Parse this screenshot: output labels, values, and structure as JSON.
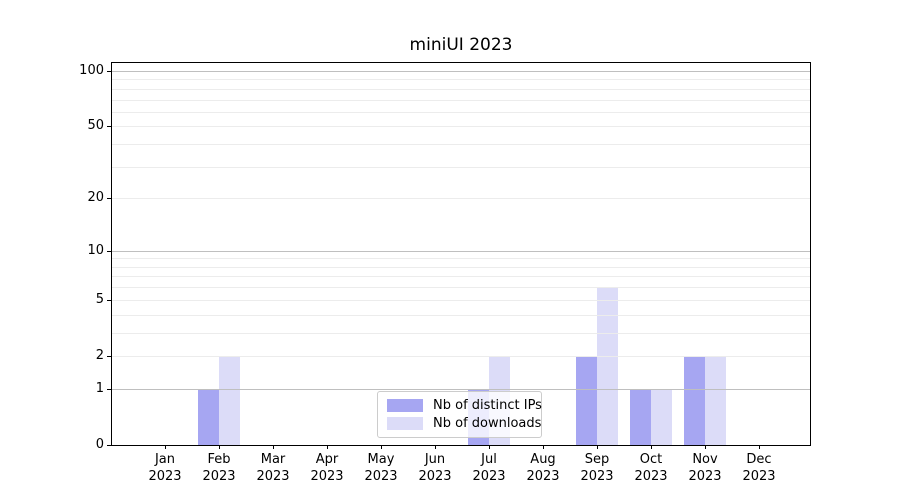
{
  "chart_data": {
    "type": "bar",
    "title": "miniUI 2023",
    "categories": [
      "Jan",
      "Feb",
      "Mar",
      "Apr",
      "May",
      "Jun",
      "Jul",
      "Aug",
      "Sep",
      "Oct",
      "Nov",
      "Dec"
    ],
    "x_tick_year": "2023",
    "series": [
      {
        "name": "Nb of distinct IPs",
        "color": "#a6a6f2",
        "values": [
          0,
          1,
          0,
          0,
          0,
          0,
          1,
          0,
          2,
          1,
          2,
          0
        ]
      },
      {
        "name": "Nb of downloads",
        "color": "#dcdcf8",
        "values": [
          0,
          2,
          0,
          0,
          0,
          0,
          2,
          0,
          6,
          1,
          2,
          0
        ]
      }
    ],
    "y_axis": {
      "scale": "log10(value+1)",
      "ticks": [
        0,
        1,
        2,
        5,
        10,
        20,
        50,
        100
      ],
      "major_gridlines": [
        1,
        10,
        100
      ],
      "minor_gridlines": [
        2,
        3,
        4,
        5,
        6,
        7,
        8,
        9,
        20,
        30,
        40,
        50,
        60,
        70,
        80,
        90
      ],
      "ylim": [
        0,
        110
      ]
    },
    "legend_position": "lower center",
    "grid": true
  },
  "colors": {
    "background": "#ffffff",
    "axis": "#000000",
    "grid_major": "#bfbfbf",
    "grid_minor": "#ececec",
    "legend_border": "#cccccc"
  }
}
